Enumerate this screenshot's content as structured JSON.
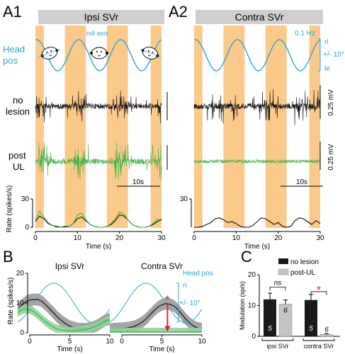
{
  "panels": {
    "a1": {
      "label": "A1",
      "title": "Ipsi SVr"
    },
    "a2": {
      "label": "A2",
      "title": "Contra SVr"
    },
    "b": {
      "label": "B"
    },
    "c": {
      "label": "C"
    }
  },
  "row_labels": {
    "head_pos": [
      "Head",
      "pos"
    ],
    "no_lesion": [
      "no",
      "lesion"
    ],
    "post_ul": [
      "post",
      "UL"
    ],
    "rate": "Rate (spikes/s)"
  },
  "annotations": {
    "roll_axis": "roll axis",
    "freq": "0.1 Hz",
    "pos_ri": "ri",
    "pos_amp": "+/- 10°",
    "pos_le": "le",
    "scale_mv_1": "0.25 mV",
    "scale_mv_2": "0.25 mV",
    "time_scale_a1": "10s",
    "time_scale_a2": "10s",
    "b_head_pos": "Head pos",
    "b_ri": "ri",
    "b_amp": "+/- 10°",
    "b_le": "le",
    "asterisk": "*"
  },
  "colors": {
    "head_pos": "#2aa6d6",
    "shade": "#fbc98a",
    "no_lesion": "#111111",
    "post_ul": "#3cb44b",
    "band_black": "#9a9a9a",
    "band_green": "#8fd39a",
    "bar_no_lesion": "#1a1a1a",
    "bar_post_ul": "#c4c4c4",
    "arrow": "#e0232b",
    "title_bar": "#cfcfcf"
  },
  "chart_data": [
    {
      "id": "A1",
      "type": "line",
      "title": "Ipsi SVr",
      "xlabel": "Time (s)",
      "ylabel": "Rate (spikes/s)",
      "xlim": [
        0,
        30
      ],
      "ylim": [
        0,
        30
      ],
      "x_ticks": [
        0,
        10,
        20,
        30
      ],
      "y_ticks": [
        0,
        30
      ],
      "head_pos_period_s": 10,
      "shaded_intervals_s": [
        [
          0,
          2
        ],
        [
          7,
          12
        ],
        [
          17,
          22
        ],
        [
          27.4,
          30
        ]
      ],
      "series": [
        {
          "name": "no lesion",
          "x": [
            0,
            1,
            2,
            3,
            4,
            5,
            6,
            7,
            8,
            9,
            10,
            11,
            12,
            13,
            14,
            15,
            16,
            17,
            18,
            19,
            20,
            21,
            22,
            23,
            24,
            25,
            26,
            27,
            28,
            29,
            30
          ],
          "y": [
            6,
            12,
            9,
            4,
            2,
            1,
            0,
            1,
            1,
            4,
            9,
            11,
            7,
            3,
            1,
            0,
            0,
            1,
            3,
            7,
            13,
            12,
            8,
            3,
            1,
            0,
            0,
            1,
            3,
            6,
            8
          ]
        },
        {
          "name": "post UL",
          "x": [
            0,
            1,
            2,
            3,
            4,
            5,
            6,
            7,
            8,
            9,
            10,
            11,
            12,
            13,
            14,
            15,
            16,
            17,
            18,
            19,
            20,
            21,
            22,
            23,
            24,
            25,
            26,
            27,
            28,
            29,
            30
          ],
          "y": [
            8,
            17,
            11,
            5,
            2,
            0,
            0,
            0,
            1,
            4,
            13,
            15,
            8,
            3,
            1,
            0,
            0,
            1,
            4,
            9,
            16,
            14,
            8,
            3,
            1,
            0,
            0,
            1,
            4,
            8,
            9
          ]
        }
      ]
    },
    {
      "id": "A2",
      "type": "line",
      "title": "Contra SVr",
      "xlabel": "Time (s)",
      "xlim": [
        0,
        30
      ],
      "ylim": [
        0,
        30
      ],
      "x_ticks": [
        0,
        10,
        20,
        30
      ],
      "y_ticks": [
        30
      ],
      "head_pos_period_s": 10,
      "shaded_intervals_s": [
        [
          0,
          2
        ],
        [
          7,
          12
        ],
        [
          17,
          22
        ],
        [
          27.4,
          30
        ]
      ],
      "series": [
        {
          "name": "no lesion",
          "x": [
            0,
            1,
            2,
            3,
            4,
            5,
            6,
            7,
            8,
            9,
            10,
            11,
            12,
            13,
            14,
            15,
            16,
            17,
            18,
            19,
            20,
            21,
            22,
            23,
            24,
            25,
            26,
            27,
            28,
            29,
            30
          ],
          "y": [
            0,
            0,
            1,
            3,
            5,
            9,
            10,
            8,
            5,
            6,
            4,
            1,
            0,
            0,
            2,
            6,
            10,
            9,
            6,
            3,
            5,
            1,
            0,
            1,
            7,
            10,
            9,
            6,
            3,
            7,
            4
          ]
        }
      ]
    },
    {
      "id": "B-ipsi",
      "type": "line",
      "title": "Ipsi SVr",
      "xlabel": "Time (s)",
      "ylabel": "Rate (spikes/s)",
      "xlim": [
        0,
        10
      ],
      "ylim": [
        0,
        20
      ],
      "x_ticks": [
        0,
        5,
        10
      ],
      "y_ticks": [
        0,
        10,
        20
      ],
      "series": [
        {
          "name": "no lesion",
          "x": [
            -1.5,
            -1,
            -0.5,
            0,
            0.5,
            1,
            1.5,
            2,
            2.5,
            3,
            3.5,
            4,
            4.5,
            5,
            5.5,
            6,
            6.5,
            7,
            7.5,
            8,
            8.5,
            9,
            9.5,
            10
          ],
          "y": [
            8,
            9.3,
            10.4,
            11,
            11.2,
            11.2,
            10.6,
            9.4,
            8,
            6.6,
            5.2,
            4,
            3,
            2.2,
            1.8,
            1.4,
            1.3,
            1.3,
            1.5,
            2,
            2.6,
            3.5,
            4.3,
            4.6
          ]
        },
        {
          "name": "post UL",
          "x": [
            -1.5,
            -1,
            -0.5,
            0,
            0.5,
            1,
            1.5,
            2,
            2.5,
            3,
            3.5,
            4,
            4.5,
            5,
            5.5,
            6,
            6.5,
            7,
            7.5,
            8,
            8.5,
            9,
            9.5,
            10
          ],
          "y": [
            6.8,
            7.6,
            8,
            7.8,
            7.1,
            6,
            4.8,
            3.6,
            2.6,
            1.8,
            1.2,
            0.9,
            0.7,
            0.6,
            0.6,
            0.7,
            0.9,
            1.1,
            1.4,
            1.9,
            2.5,
            3.2,
            3.9,
            4.3
          ]
        }
      ]
    },
    {
      "id": "B-contra",
      "type": "line",
      "title": "Contra SVr",
      "xlabel": "Time (s)",
      "xlim": [
        0,
        10
      ],
      "ylim": [
        0,
        20
      ],
      "x_ticks": [
        0,
        5,
        10
      ],
      "series": [
        {
          "name": "no lesion",
          "x": [
            -1.5,
            -1,
            -0.5,
            0,
            0.5,
            1,
            1.5,
            2,
            2.5,
            3,
            3.5,
            4,
            4.5,
            5,
            5.5,
            6,
            6.5,
            7,
            7.5,
            8,
            8.5,
            9,
            9.5,
            10
          ],
          "y": [
            1.2,
            1.3,
            1.4,
            1.5,
            1.6,
            1.8,
            2.1,
            2.7,
            3.5,
            4.6,
            6,
            7.4,
            8.6,
            9.4,
            9.8,
            9.6,
            9,
            7.8,
            6.2,
            4.6,
            3.2,
            2.2,
            1.6,
            1.3
          ]
        },
        {
          "name": "post UL",
          "x": [
            -1.5,
            -1,
            -0.5,
            0,
            0.5,
            1,
            1.5,
            2,
            2.5,
            3,
            3.5,
            4,
            4.5,
            5,
            5.5,
            6,
            6.5,
            7,
            7.5,
            8,
            8.5,
            9,
            9.5,
            10
          ],
          "y": [
            0.3,
            0.3,
            0.3,
            0.3,
            0.3,
            0.3,
            0.3,
            0.3,
            0.3,
            0.3,
            0.3,
            0.3,
            0.3,
            0.3,
            0.3,
            0.3,
            0.3,
            0.3,
            0.3,
            0.3,
            0.3,
            0.3,
            0.3,
            0.3
          ]
        }
      ],
      "annotation": "*"
    },
    {
      "id": "C",
      "type": "bar",
      "ylabel": "Modulation (sp/s)",
      "ylim": [
        0,
        20
      ],
      "y_ticks": [
        0,
        10,
        20
      ],
      "groups": [
        "ipsi SVr",
        "contra SVr"
      ],
      "series": [
        {
          "name": "no lesion",
          "values": [
            12,
            11.8
          ],
          "errors": [
            2,
            1.8
          ],
          "n": [
            "5",
            "5"
          ]
        },
        {
          "name": "post-UL",
          "values": [
            10.5,
            0.6
          ],
          "errors": [
            1.3,
            0.3
          ],
          "n": [
            "6",
            "6"
          ]
        }
      ],
      "significance": [
        "ns",
        "*"
      ]
    }
  ]
}
